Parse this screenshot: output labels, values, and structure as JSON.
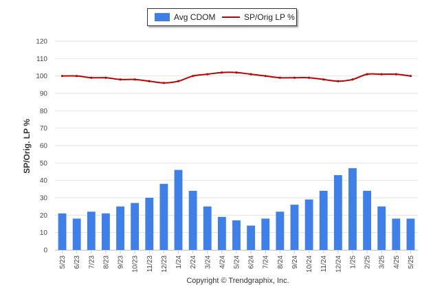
{
  "legend": {
    "bar_label": "Avg CDOM",
    "line_label": "SP/Orig LP %"
  },
  "copyright": "Copyright © Trendgraphix, Inc.",
  "colors": {
    "bar": "#3f7fea",
    "line": "#c00000",
    "grid": "#e2e2e2"
  },
  "chart_data": {
    "type": "bar",
    "title": "",
    "xlabel": "",
    "ylabel": "SP/Orig. LP %",
    "ylim": [
      0,
      120
    ],
    "yticks": [
      0,
      10,
      20,
      30,
      40,
      50,
      60,
      70,
      80,
      90,
      100,
      110,
      120
    ],
    "grid": true,
    "legend_position": "top-center",
    "categories": [
      "5/23",
      "6/23",
      "7/23",
      "8/23",
      "9/23",
      "10/23",
      "11/23",
      "12/23",
      "1/24",
      "2/24",
      "3/24",
      "4/24",
      "5/24",
      "6/24",
      "7/24",
      "8/24",
      "9/24",
      "10/24",
      "11/24",
      "12/24",
      "1/25",
      "2/25",
      "3/25",
      "4/25",
      "5/25"
    ],
    "series": [
      {
        "name": "Avg CDOM",
        "type": "bar",
        "values": [
          21,
          18,
          22,
          21,
          25,
          27,
          30,
          38,
          46,
          34,
          25,
          19,
          17,
          14,
          18,
          22,
          26,
          29,
          34,
          43,
          47,
          34,
          25,
          18,
          18
        ]
      },
      {
        "name": "SP/Orig LP %",
        "type": "line",
        "values": [
          100,
          100,
          99,
          99,
          98,
          98,
          97,
          96,
          97,
          100,
          101,
          102,
          102,
          101,
          100,
          99,
          99,
          99,
          98,
          97,
          98,
          101,
          101,
          101,
          100
        ]
      }
    ]
  }
}
